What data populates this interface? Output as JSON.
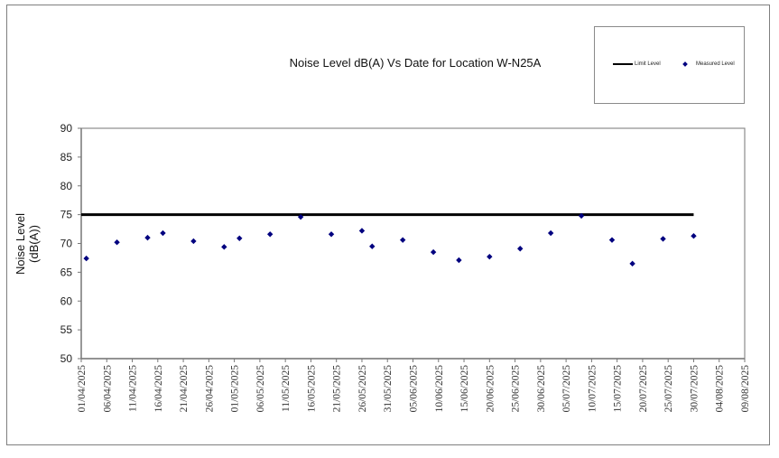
{
  "chart_data": {
    "type": "scatter",
    "title": "Noise Level dB(A) Vs Date for Location W-N25A",
    "xlabel": "",
    "ylabel": "Noise Level (dB(A))",
    "ylabel_lines": [
      "Noise Level",
      "(dB(A))"
    ],
    "ylim": [
      50,
      90
    ],
    "yticks": [
      50,
      55,
      60,
      65,
      70,
      75,
      80,
      85,
      90
    ],
    "xlim": [
      "01/04/2025",
      "09/08/2025"
    ],
    "xticks": [
      "01/04/2025",
      "06/04/2025",
      "11/04/2025",
      "16/04/2025",
      "21/04/2025",
      "26/04/2025",
      "01/05/2025",
      "06/05/2025",
      "11/05/2025",
      "16/05/2025",
      "21/05/2025",
      "26/05/2025",
      "31/05/2025",
      "05/06/2025",
      "10/06/2025",
      "15/06/2025",
      "20/06/2025",
      "25/06/2025",
      "30/06/2025",
      "05/07/2025",
      "10/07/2025",
      "15/07/2025",
      "20/07/2025",
      "25/07/2025",
      "30/07/2025",
      "04/08/2025",
      "09/08/2025"
    ],
    "grid": false,
    "legend_position": "top-right",
    "legend": [
      "Limit Level",
      "Measured Level"
    ],
    "series": [
      {
        "name": "Limit Level",
        "type": "line",
        "color": "#000000",
        "x": [
          "01/04/2025",
          "30/07/2025"
        ],
        "values": [
          75,
          75
        ]
      },
      {
        "name": "Measured Level",
        "type": "scatter",
        "color": "#00007f",
        "marker": "diamond",
        "x": [
          "02/04/2025",
          "08/04/2025",
          "14/04/2025",
          "17/04/2025",
          "23/04/2025",
          "29/04/2025",
          "02/05/2025",
          "08/05/2025",
          "14/05/2025",
          "20/05/2025",
          "26/05/2025",
          "28/05/2025",
          "03/06/2025",
          "09/06/2025",
          "14/06/2025",
          "20/06/2025",
          "26/06/2025",
          "02/07/2025",
          "08/07/2025",
          "14/07/2025",
          "18/07/2025",
          "24/07/2025",
          "30/07/2025"
        ],
        "day_offsets": [
          1,
          7,
          13,
          16,
          22,
          28,
          31,
          37,
          43,
          49,
          55,
          57,
          63,
          69,
          74,
          80,
          86,
          92,
          98,
          104,
          108,
          114,
          120
        ],
        "values": [
          67.4,
          70.2,
          71.0,
          71.8,
          70.4,
          69.4,
          70.9,
          71.6,
          74.6,
          71.6,
          72.2,
          69.5,
          70.6,
          68.5,
          67.1,
          67.7,
          69.1,
          71.8,
          74.8,
          70.6,
          66.5,
          70.8,
          71.3
        ]
      }
    ]
  }
}
